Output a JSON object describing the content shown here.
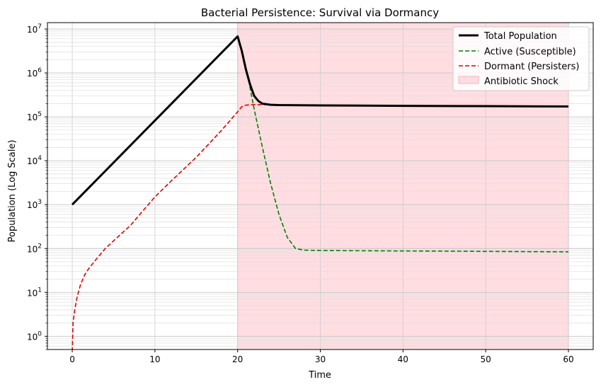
{
  "chart_data": {
    "type": "line",
    "title": "Bacterial Persistence: Survival via Dormancy",
    "xlabel": "Time",
    "ylabel": "Population (Log Scale)",
    "xlim": [
      -3,
      63
    ],
    "ylim": [
      0.5,
      14000000
    ],
    "yscale": "log",
    "grid": true,
    "legend_position": "top-right",
    "x_ticks": [
      0,
      10,
      20,
      30,
      40,
      50,
      60
    ],
    "y_ticks": [
      {
        "value": 1,
        "base": "10",
        "exp": "0"
      },
      {
        "value": 10,
        "base": "10",
        "exp": "1"
      },
      {
        "value": 100,
        "base": "10",
        "exp": "2"
      },
      {
        "value": 1000,
        "base": "10",
        "exp": "3"
      },
      {
        "value": 10000,
        "base": "10",
        "exp": "4"
      },
      {
        "value": 100000,
        "base": "10",
        "exp": "5"
      },
      {
        "value": 1000000,
        "base": "10",
        "exp": "6"
      },
      {
        "value": 10000000,
        "base": "10",
        "exp": "7"
      }
    ],
    "shaded_region": {
      "name": "Antibiotic Shock",
      "x": [
        20,
        60
      ],
      "color": "#ffdde1"
    },
    "series": [
      {
        "name": "Total Population",
        "color": "#000000",
        "style": "solid",
        "points": [
          [
            0,
            1000
          ],
          [
            20,
            6800000
          ],
          [
            20.5,
            3200000
          ],
          [
            21,
            1200000
          ],
          [
            21.5,
            550000
          ],
          [
            22,
            300000
          ],
          [
            22.5,
            230000
          ],
          [
            23,
            200000
          ],
          [
            24,
            188000
          ],
          [
            25,
            185000
          ],
          [
            30,
            182000
          ],
          [
            40,
            178000
          ],
          [
            50,
            175000
          ],
          [
            60,
            172000
          ]
        ]
      },
      {
        "name": "Active (Susceptible)",
        "color": "#008000",
        "style": "dashed",
        "points": [
          [
            0,
            1000
          ],
          [
            20,
            6600000
          ],
          [
            21,
            1400000
          ],
          [
            22,
            150000
          ],
          [
            23,
            20000
          ],
          [
            24,
            3000
          ],
          [
            25,
            600
          ],
          [
            26,
            180
          ],
          [
            27,
            100
          ],
          [
            28,
            92
          ],
          [
            30,
            90
          ],
          [
            40,
            88
          ],
          [
            50,
            86
          ],
          [
            60,
            84
          ]
        ]
      },
      {
        "name": "Dormant (Persisters)",
        "color": "#e00000",
        "style": "dashed",
        "points": [
          [
            0,
            0.45
          ],
          [
            0.1,
            2
          ],
          [
            0.3,
            4
          ],
          [
            0.6,
            8
          ],
          [
            1,
            15
          ],
          [
            1.5,
            25
          ],
          [
            2,
            35
          ],
          [
            3,
            60
          ],
          [
            4,
            100
          ],
          [
            5,
            150
          ],
          [
            7,
            330
          ],
          [
            10,
            1500
          ],
          [
            12,
            3500
          ],
          [
            15,
            12000
          ],
          [
            18,
            48000
          ],
          [
            20,
            130000
          ],
          [
            20.5,
            170000
          ],
          [
            21,
            185000
          ],
          [
            22,
            190000
          ],
          [
            25,
            188000
          ],
          [
            30,
            185000
          ],
          [
            40,
            180000
          ],
          [
            50,
            176000
          ],
          [
            60,
            172000
          ]
        ]
      }
    ]
  }
}
